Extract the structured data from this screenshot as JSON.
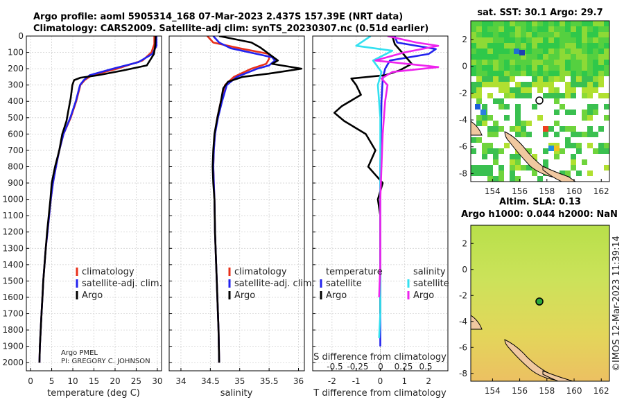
{
  "header": {
    "title_line1": "Argo profile: aoml 5905314_168 07-Mar-2023 2.437S 157.39E (NRT data)",
    "title_line2": "Climatology: CARS2009. Satellite-adj clim: synTS_20230307.nc (0.51d earlier)"
  },
  "credit": {
    "line1": "Argo PMEL",
    "line2": "PI: GREGORY C. JOHNSON"
  },
  "footer": {
    "timestamp": "©IMOS 12-Mar-2023 11:39:14"
  },
  "colors": {
    "climatology": "#e8301a",
    "satellite": "#2222ee",
    "argo": "#000000",
    "sat_s": "#33e0f0",
    "argo_s": "#ee22ee"
  },
  "chart_data": [
    {
      "id": "temperature",
      "type": "line",
      "xlabel": "temperature (deg C)",
      "ylabel": "",
      "xlim": [
        -1,
        31
      ],
      "ylim": [
        2050,
        0
      ],
      "xticks": [
        0,
        5,
        10,
        15,
        20,
        25,
        30
      ],
      "yticks": [
        0,
        100,
        200,
        300,
        400,
        500,
        600,
        700,
        800,
        900,
        1000,
        1100,
        1200,
        1300,
        1400,
        1500,
        1600,
        1700,
        1800,
        1900,
        2000
      ],
      "legend": [
        "climatology",
        "satellite-adj. clim.",
        "Argo"
      ],
      "series": [
        {
          "name": "climatology",
          "color": "#e8301a",
          "points": [
            [
              29.3,
              0
            ],
            [
              29.3,
              50
            ],
            [
              28.6,
              100
            ],
            [
              26.5,
              150
            ],
            [
              20.5,
              200
            ],
            [
              14.5,
              240
            ],
            [
              12.8,
              270
            ],
            [
              11.8,
              300
            ],
            [
              10.8,
              400
            ],
            [
              9.5,
              500
            ],
            [
              7.8,
              600
            ],
            [
              6.8,
              700
            ],
            [
              6.0,
              800
            ],
            [
              5.3,
              900
            ],
            [
              4.8,
              1000
            ],
            [
              4.4,
              1100
            ],
            [
              4.0,
              1200
            ],
            [
              3.6,
              1300
            ],
            [
              3.3,
              1400
            ],
            [
              3.0,
              1500
            ],
            [
              2.8,
              1600
            ],
            [
              2.6,
              1700
            ],
            [
              2.4,
              1800
            ],
            [
              2.2,
              1900
            ],
            [
              2.1,
              2000
            ]
          ]
        },
        {
          "name": "satellite-adj. clim.",
          "color": "#2222ee",
          "points": [
            [
              29.8,
              0
            ],
            [
              29.8,
              60
            ],
            [
              28.8,
              110
            ],
            [
              25.5,
              160
            ],
            [
              19.5,
              200
            ],
            [
              14.0,
              240
            ],
            [
              12.6,
              270
            ],
            [
              11.7,
              300
            ],
            [
              10.7,
              400
            ],
            [
              9.4,
              500
            ],
            [
              7.8,
              600
            ],
            [
              6.8,
              700
            ],
            [
              6.0,
              800
            ],
            [
              5.3,
              900
            ],
            [
              4.8,
              1000
            ],
            [
              4.4,
              1100
            ],
            [
              4.0,
              1200
            ],
            [
              3.6,
              1300
            ],
            [
              3.3,
              1400
            ],
            [
              3.0,
              1500
            ],
            [
              2.8,
              1600
            ],
            [
              2.6,
              1700
            ],
            [
              2.4,
              1800
            ],
            [
              2.2,
              1900
            ],
            [
              2.1,
              2000
            ]
          ]
        },
        {
          "name": "Argo",
          "color": "#000000",
          "points": [
            [
              29.6,
              0
            ],
            [
              29.5,
              60
            ],
            [
              29.2,
              110
            ],
            [
              27.5,
              180
            ],
            [
              22.0,
              210
            ],
            [
              16.0,
              240
            ],
            [
              11.8,
              255
            ],
            [
              10.3,
              270
            ],
            [
              9.9,
              300
            ],
            [
              9.5,
              380
            ],
            [
              9.0,
              450
            ],
            [
              8.5,
              520
            ],
            [
              7.5,
              600
            ],
            [
              6.8,
              700
            ],
            [
              5.8,
              800
            ],
            [
              5.0,
              900
            ],
            [
              4.7,
              1000
            ],
            [
              4.3,
              1100
            ],
            [
              3.9,
              1200
            ],
            [
              3.6,
              1300
            ],
            [
              3.3,
              1400
            ],
            [
              3.0,
              1500
            ],
            [
              2.8,
              1600
            ],
            [
              2.6,
              1700
            ],
            [
              2.4,
              1800
            ],
            [
              2.2,
              1900
            ],
            [
              2.1,
              2000
            ]
          ]
        }
      ]
    },
    {
      "id": "salinity",
      "type": "line",
      "xlabel": "salinity",
      "xlim": [
        33.8,
        36.1
      ],
      "ylim": [
        2050,
        0
      ],
      "xticks": [
        34,
        34.5,
        35,
        35.5,
        36
      ],
      "legend": [
        "climatology",
        "satellite-adj. clim.",
        "Argo"
      ],
      "series": [
        {
          "name": "climatology",
          "color": "#e8301a",
          "points": [
            [
              34.45,
              0
            ],
            [
              34.55,
              40
            ],
            [
              35.0,
              75
            ],
            [
              35.5,
              110
            ],
            [
              35.5,
              140
            ],
            [
              35.45,
              170
            ],
            [
              35.2,
              200
            ],
            [
              34.9,
              250
            ],
            [
              34.75,
              300
            ],
            [
              34.68,
              400
            ],
            [
              34.62,
              500
            ],
            [
              34.58,
              600
            ],
            [
              34.56,
              700
            ],
            [
              34.55,
              800
            ],
            [
              34.56,
              900
            ],
            [
              34.57,
              1000
            ],
            [
              34.58,
              1200
            ],
            [
              34.6,
              1400
            ],
            [
              34.62,
              1600
            ],
            [
              34.64,
              1800
            ],
            [
              34.65,
              2000
            ]
          ]
        },
        {
          "name": "satellite-adj. clim.",
          "color": "#2222ee",
          "points": [
            [
              34.55,
              0
            ],
            [
              34.65,
              40
            ],
            [
              34.85,
              75
            ],
            [
              35.55,
              130
            ],
            [
              35.6,
              150
            ],
            [
              35.5,
              180
            ],
            [
              35.3,
              200
            ],
            [
              34.95,
              250
            ],
            [
              34.78,
              300
            ],
            [
              34.7,
              400
            ],
            [
              34.63,
              500
            ],
            [
              34.58,
              600
            ],
            [
              34.56,
              700
            ],
            [
              34.55,
              800
            ],
            [
              34.56,
              900
            ],
            [
              34.57,
              1000
            ],
            [
              34.58,
              1200
            ],
            [
              34.6,
              1400
            ],
            [
              34.62,
              1600
            ],
            [
              34.64,
              1800
            ],
            [
              34.65,
              2000
            ]
          ]
        },
        {
          "name": "Argo",
          "color": "#000000",
          "points": [
            [
              34.65,
              0
            ],
            [
              35.2,
              40
            ],
            [
              35.35,
              70
            ],
            [
              35.5,
              110
            ],
            [
              35.65,
              150
            ],
            [
              35.55,
              170
            ],
            [
              36.05,
              200
            ],
            [
              35.5,
              230
            ],
            [
              35.05,
              250
            ],
            [
              34.8,
              280
            ],
            [
              34.72,
              320
            ],
            [
              34.68,
              400
            ],
            [
              34.62,
              500
            ],
            [
              34.57,
              600
            ],
            [
              34.55,
              700
            ],
            [
              34.54,
              800
            ],
            [
              34.55,
              900
            ],
            [
              34.57,
              1000
            ],
            [
              34.58,
              1200
            ],
            [
              34.6,
              1400
            ],
            [
              34.62,
              1600
            ],
            [
              34.64,
              1800
            ],
            [
              34.65,
              2000
            ]
          ]
        }
      ]
    },
    {
      "id": "difference",
      "type": "line",
      "xlabel": "T difference from climatology",
      "xlabel_top": "S difference from climatology",
      "xlim": [
        -2.8,
        2.8
      ],
      "ylim": [
        2050,
        0
      ],
      "xticks": [
        -2,
        -1,
        0,
        1,
        2
      ],
      "s_ticks": [
        "-0.5",
        "-0.25",
        "0",
        "0.25",
        "0.5"
      ],
      "legend_titles": {
        "temperature": "temperature",
        "salinity": "salinity"
      },
      "legend_t": [
        "satellite",
        "Argo"
      ],
      "legend_s": [
        "satellite",
        "Argo"
      ],
      "series": [
        {
          "name": "T satellite",
          "color": "#2222ee",
          "points": [
            [
              0.6,
              0
            ],
            [
              0.7,
              40
            ],
            [
              2.3,
              80
            ],
            [
              2.0,
              110
            ],
            [
              0.4,
              150
            ],
            [
              0.2,
              200
            ],
            [
              0.1,
              260
            ],
            [
              0.05,
              400
            ],
            [
              0.03,
              600
            ],
            [
              0,
              800
            ],
            [
              0,
              1000
            ],
            [
              0,
              1200
            ],
            [
              0,
              1400
            ],
            [
              0,
              1600
            ],
            [
              0,
              1800
            ],
            [
              0,
              1900
            ]
          ]
        },
        {
          "name": "T Argo",
          "color": "#000000",
          "points": [
            [
              0.5,
              0
            ],
            [
              0.6,
              50
            ],
            [
              0.9,
              100
            ],
            [
              1.3,
              170
            ],
            [
              0.8,
              210
            ],
            [
              0.2,
              240
            ],
            [
              -1.2,
              260
            ],
            [
              -1.0,
              300
            ],
            [
              -0.8,
              360
            ],
            [
              -1.6,
              430
            ],
            [
              -1.9,
              470
            ],
            [
              -1.5,
              520
            ],
            [
              -0.6,
              600
            ],
            [
              -0.2,
              700
            ],
            [
              -0.5,
              800
            ],
            [
              -0.2,
              850
            ],
            [
              0.1,
              900
            ],
            [
              -0.1,
              1000
            ],
            [
              0,
              1100
            ],
            [
              0,
              1200
            ],
            [
              0,
              1400
            ],
            [
              0,
              1600
            ],
            [
              0,
              1700
            ]
          ]
        },
        {
          "name": "S satellite",
          "color": "#33e0f0",
          "points": [
            [
              -0.4,
              0
            ],
            [
              -1.0,
              60
            ],
            [
              0.5,
              90
            ],
            [
              -0.3,
              150
            ],
            [
              0.05,
              220
            ],
            [
              -0.1,
              300
            ],
            [
              0,
              500
            ],
            [
              0,
              800
            ],
            [
              0,
              1100
            ],
            [
              0,
              1400
            ],
            [
              0,
              1700
            ],
            [
              -0.05,
              1850
            ]
          ]
        },
        {
          "name": "S Argo",
          "color": "#ee22ee",
          "points": [
            [
              0.3,
              0
            ],
            [
              1.5,
              40
            ],
            [
              2.4,
              60
            ],
            [
              1.0,
              100
            ],
            [
              -0.2,
              150
            ],
            [
              2.4,
              190
            ],
            [
              0.5,
              220
            ],
            [
              0.05,
              260
            ],
            [
              0.3,
              300
            ],
            [
              0.2,
              400
            ],
            [
              0.15,
              500
            ],
            [
              0.1,
              600
            ],
            [
              0.05,
              800
            ],
            [
              0,
              1000
            ],
            [
              0,
              1200
            ],
            [
              0,
              1400
            ],
            [
              -0.05,
              1600
            ]
          ]
        }
      ]
    },
    {
      "id": "map_sst",
      "type": "heatmap",
      "title": "sat. SST: 30.1 Argo: 29.7",
      "xticks": [
        154,
        156,
        158,
        160,
        162
      ],
      "yticks": [
        2,
        0,
        -2,
        -4,
        -6,
        -8
      ],
      "xlim": [
        152.4,
        162.6
      ],
      "ylim": [
        -8.6,
        3.4
      ],
      "marker": {
        "lon": 157.39,
        "lat": -2.437
      }
    },
    {
      "id": "map_sla",
      "type": "heatmap",
      "title_line1": "Altim. SLA: 0.13",
      "title_line2": "Argo h1000: 0.044 h2000: NaN",
      "xticks": [
        154,
        156,
        158,
        160,
        162
      ],
      "yticks": [
        2,
        0,
        -2,
        -4,
        -6,
        -8
      ],
      "xlim": [
        152.4,
        162.6
      ],
      "ylim": [
        -8.6,
        3.4
      ],
      "marker": {
        "lon": 157.39,
        "lat": -2.437
      }
    }
  ]
}
